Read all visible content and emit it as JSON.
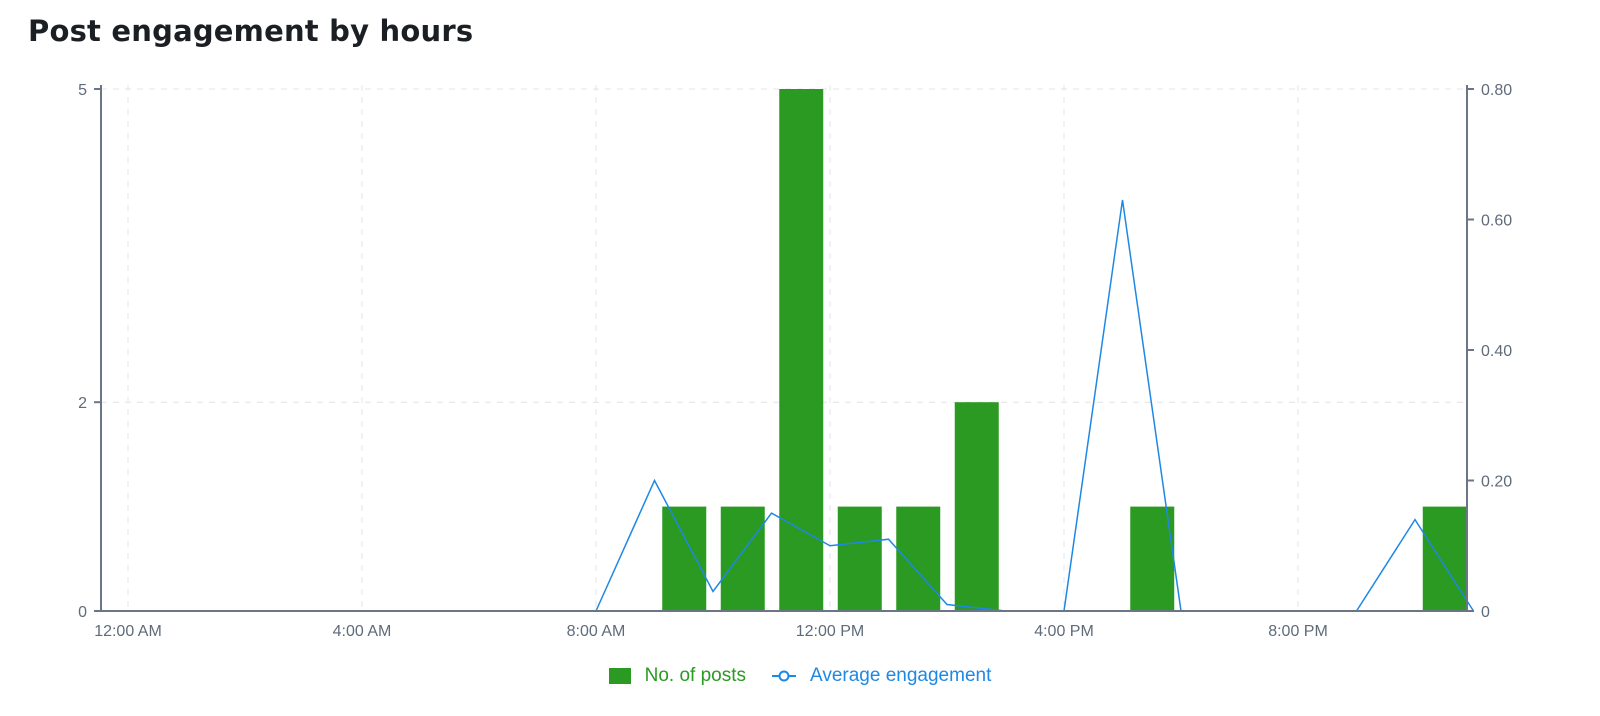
{
  "chart_data": {
    "type": "bar",
    "title": "Post engagement by hours",
    "x": [
      "12:00 AM",
      "1:00 AM",
      "2:00 AM",
      "3:00 AM",
      "4:00 AM",
      "5:00 AM",
      "6:00 AM",
      "7:00 AM",
      "8:00 AM",
      "9:00 AM",
      "10:00 AM",
      "11:00 AM",
      "12:00 PM",
      "1:00 PM",
      "2:00 PM",
      "3:00 PM",
      "4:00 PM",
      "5:00 PM",
      "6:00 PM",
      "7:00 PM",
      "8:00 PM",
      "9:00 PM",
      "10:00 PM",
      "11:00 PM"
    ],
    "x_tick_labels": [
      "12:00 AM",
      "4:00 AM",
      "8:00 AM",
      "12:00 PM",
      "4:00 PM",
      "8:00 PM"
    ],
    "y_left_ticks": [
      "0",
      "2",
      "5"
    ],
    "y_right_ticks": [
      "0",
      "0.20",
      "0.40",
      "0.60",
      "0.80"
    ],
    "y_left_lim": [
      0,
      5
    ],
    "y_right_lim": [
      0,
      0.8
    ],
    "grid": true,
    "legend_position": "bottom-center",
    "series": [
      {
        "name": "No. of posts",
        "type": "bar",
        "axis": "left",
        "color": "#2b9a22",
        "values": [
          0,
          0,
          0,
          0,
          0,
          0,
          0,
          0,
          0,
          1,
          1,
          5,
          1,
          1,
          2,
          0,
          0,
          1,
          0,
          0,
          0,
          0,
          1,
          0
        ]
      },
      {
        "name": "Average engagement",
        "type": "line",
        "axis": "right",
        "color": "#1e88e5",
        "values": [
          0,
          0,
          0,
          0,
          0,
          0,
          0,
          0,
          0,
          0.2,
          0.03,
          0.15,
          0.1,
          0.11,
          0.01,
          0,
          0,
          0.63,
          0,
          0,
          0,
          0,
          0.14,
          0
        ]
      }
    ]
  }
}
